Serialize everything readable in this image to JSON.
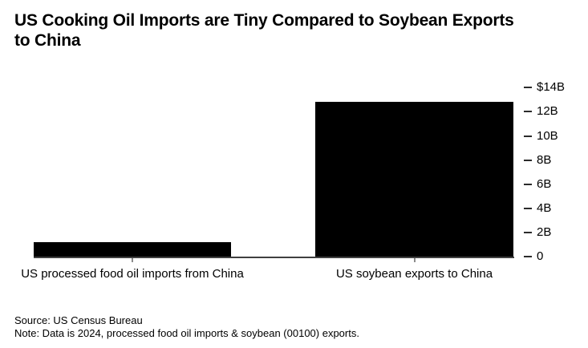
{
  "title": {
    "full": "US Cooking Oil Imports are Tiny Compared to Soybean Exports to China",
    "lines": [
      "US Cooking Oil Imports are Tiny Compared to Soybean Exports",
      "to China"
    ]
  },
  "footer": {
    "source": "Source: US Census Bureau",
    "note": "Note: Data is 2024, processed food oil imports & soybean (00100) exports."
  },
  "colors": {
    "background": "#ffffff",
    "bar": "#000000",
    "axis_line": "#404040",
    "tick_mark": "#2b2b2b",
    "category_tick": "#8c8c8c",
    "text": "#000000"
  },
  "chart_data": {
    "type": "bar",
    "categories": [
      "US processed food oil imports from China",
      "US soybean exports to China"
    ],
    "values": [
      1.2,
      12.8
    ],
    "unit": "USD billions",
    "title": "US Cooking Oil Imports are Tiny Compared to Soybean Exports to China",
    "xlabel": "",
    "ylabel": "",
    "ylim": [
      0,
      14
    ],
    "y_ticks": [
      {
        "value": 14,
        "label": "$14B"
      },
      {
        "value": 12,
        "label": "12B"
      },
      {
        "value": 10,
        "label": "10B"
      },
      {
        "value": 8,
        "label": "8B"
      },
      {
        "value": 6,
        "label": "6B"
      },
      {
        "value": 4,
        "label": "4B"
      },
      {
        "value": 2,
        "label": "2B"
      },
      {
        "value": 0,
        "label": "0"
      }
    ],
    "grid": false,
    "legend": false,
    "axis_side": "right",
    "bar_color": "#000000"
  }
}
